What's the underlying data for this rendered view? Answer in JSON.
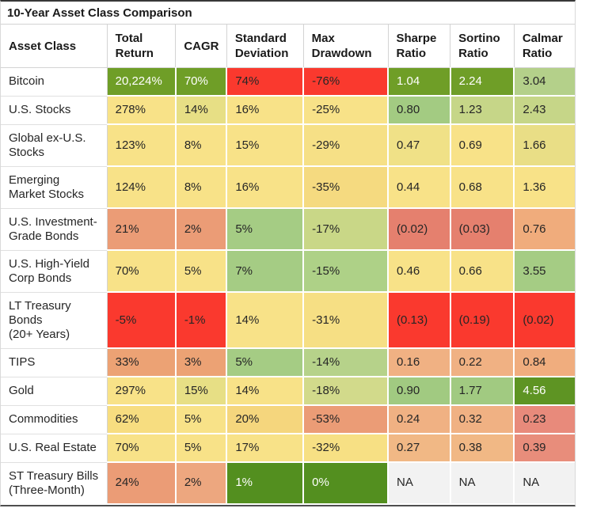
{
  "title": "10-Year Asset Class Comparison",
  "palette": {
    "strong_green": "#6f9e27",
    "green": "#a5cc84",
    "light_green": "#c6d688",
    "yellow": "#f8e288",
    "orange": "#f0b183",
    "salmon": "#eb9c76",
    "red": "#fa392e",
    "na_gray": "#f2f2f2",
    "dark_text": "#262626",
    "white_text": "#ffffff"
  },
  "chart_data": {
    "type": "table",
    "title": "10-Year Asset Class Comparison",
    "columns": [
      "Asset Class",
      "Total\nReturn",
      "CAGR",
      "Standard\nDeviation",
      "Max\nDrawdown",
      "Sharpe\nRatio",
      "Sortino\nRatio",
      "Calmar\nRatio"
    ],
    "rows": [
      {
        "asset": "Bitcoin",
        "cells": [
          {
            "text": "20,224%",
            "bg": "#6f9e27",
            "fg": "#ffffff"
          },
          {
            "text": "70%",
            "bg": "#6f9e27",
            "fg": "#ffffff"
          },
          {
            "text": "74%",
            "bg": "#fa392e",
            "fg": "#262626"
          },
          {
            "text": "-76%",
            "bg": "#fa392e",
            "fg": "#262626"
          },
          {
            "text": "1.04",
            "bg": "#6f9e27",
            "fg": "#ffffff"
          },
          {
            "text": "2.24",
            "bg": "#6f9e27",
            "fg": "#ffffff"
          },
          {
            "text": "3.04",
            "bg": "#b4d08a",
            "fg": "#262626"
          }
        ]
      },
      {
        "asset": "U.S. Stocks",
        "cells": [
          {
            "text": "278%",
            "bg": "#f8e288",
            "fg": "#262626"
          },
          {
            "text": "14%",
            "bg": "#e7df85",
            "fg": "#262626"
          },
          {
            "text": "16%",
            "bg": "#f8e288",
            "fg": "#262626"
          },
          {
            "text": "-25%",
            "bg": "#f8e288",
            "fg": "#262626"
          },
          {
            "text": "0.80",
            "bg": "#a3cb82",
            "fg": "#262626"
          },
          {
            "text": "1.23",
            "bg": "#c6d688",
            "fg": "#262626"
          },
          {
            "text": "2.43",
            "bg": "#c6d688",
            "fg": "#262626"
          }
        ]
      },
      {
        "asset": "Global ex-U.S.\nStocks",
        "cells": [
          {
            "text": "123%",
            "bg": "#f8e288",
            "fg": "#262626"
          },
          {
            "text": "8%",
            "bg": "#f8e288",
            "fg": "#262626"
          },
          {
            "text": "15%",
            "bg": "#f8e288",
            "fg": "#262626"
          },
          {
            "text": "-29%",
            "bg": "#f6e086",
            "fg": "#262626"
          },
          {
            "text": "0.47",
            "bg": "#f0e187",
            "fg": "#262626"
          },
          {
            "text": "0.69",
            "bg": "#f8e288",
            "fg": "#262626"
          },
          {
            "text": "1.66",
            "bg": "#e9de86",
            "fg": "#262626"
          }
        ]
      },
      {
        "asset": "Emerging\nMarket Stocks",
        "cells": [
          {
            "text": "124%",
            "bg": "#f8e288",
            "fg": "#262626"
          },
          {
            "text": "8%",
            "bg": "#f8e288",
            "fg": "#262626"
          },
          {
            "text": "16%",
            "bg": "#f8e288",
            "fg": "#262626"
          },
          {
            "text": "-35%",
            "bg": "#f5da80",
            "fg": "#262626"
          },
          {
            "text": "0.44",
            "bg": "#f8e288",
            "fg": "#262626"
          },
          {
            "text": "0.68",
            "bg": "#f8e288",
            "fg": "#262626"
          },
          {
            "text": "1.36",
            "bg": "#f8e288",
            "fg": "#262626"
          }
        ]
      },
      {
        "asset": "U.S. Investment-\nGrade Bonds",
        "cells": [
          {
            "text": "21%",
            "bg": "#eb9c76",
            "fg": "#262626"
          },
          {
            "text": "2%",
            "bg": "#eb9c76",
            "fg": "#262626"
          },
          {
            "text": "5%",
            "bg": "#a5cc84",
            "fg": "#262626"
          },
          {
            "text": "-17%",
            "bg": "#c9d787",
            "fg": "#262626"
          },
          {
            "text": "(0.02)",
            "bg": "#e5806e",
            "fg": "#262626"
          },
          {
            "text": "(0.03)",
            "bg": "#e5806e",
            "fg": "#262626"
          },
          {
            "text": "0.76",
            "bg": "#f0ac7c",
            "fg": "#262626"
          }
        ]
      },
      {
        "asset": "U.S. High-Yield\nCorp Bonds",
        "cells": [
          {
            "text": "70%",
            "bg": "#f8e288",
            "fg": "#262626"
          },
          {
            "text": "5%",
            "bg": "#f8e288",
            "fg": "#262626"
          },
          {
            "text": "7%",
            "bg": "#a5cc84",
            "fg": "#262626"
          },
          {
            "text": "-15%",
            "bg": "#aed187",
            "fg": "#262626"
          },
          {
            "text": "0.46",
            "bg": "#f8e288",
            "fg": "#262626"
          },
          {
            "text": "0.66",
            "bg": "#f8e288",
            "fg": "#262626"
          },
          {
            "text": "3.55",
            "bg": "#a5cc84",
            "fg": "#262626"
          }
        ]
      },
      {
        "asset": "LT Treasury\nBonds\n(20+ Years)",
        "cells": [
          {
            "text": "-5%",
            "bg": "#fa392e",
            "fg": "#262626"
          },
          {
            "text": "-1%",
            "bg": "#fa392e",
            "fg": "#262626"
          },
          {
            "text": "14%",
            "bg": "#f8e288",
            "fg": "#262626"
          },
          {
            "text": "-31%",
            "bg": "#f6df84",
            "fg": "#262626"
          },
          {
            "text": "(0.13)",
            "bg": "#fa392e",
            "fg": "#262626"
          },
          {
            "text": "(0.19)",
            "bg": "#fa392e",
            "fg": "#262626"
          },
          {
            "text": "(0.02)",
            "bg": "#fa392e",
            "fg": "#262626"
          }
        ]
      },
      {
        "asset": "TIPS",
        "cells": [
          {
            "text": "33%",
            "bg": "#eca274",
            "fg": "#262626"
          },
          {
            "text": "3%",
            "bg": "#eca274",
            "fg": "#262626"
          },
          {
            "text": "5%",
            "bg": "#a5cc84",
            "fg": "#262626"
          },
          {
            "text": "-14%",
            "bg": "#b6d28a",
            "fg": "#262626"
          },
          {
            "text": "0.16",
            "bg": "#f0b183",
            "fg": "#262626"
          },
          {
            "text": "0.22",
            "bg": "#f0b183",
            "fg": "#262626"
          },
          {
            "text": "0.84",
            "bg": "#f0ad7e",
            "fg": "#262626"
          }
        ]
      },
      {
        "asset": "Gold",
        "cells": [
          {
            "text": "297%",
            "bg": "#f8e288",
            "fg": "#262626"
          },
          {
            "text": "15%",
            "bg": "#e7df85",
            "fg": "#262626"
          },
          {
            "text": "14%",
            "bg": "#f8e288",
            "fg": "#262626"
          },
          {
            "text": "-18%",
            "bg": "#d2da8b",
            "fg": "#262626"
          },
          {
            "text": "0.90",
            "bg": "#a1ca81",
            "fg": "#262626"
          },
          {
            "text": "1.77",
            "bg": "#a1ca81",
            "fg": "#262626"
          },
          {
            "text": "4.56",
            "bg": "#5e9423",
            "fg": "#ffffff"
          }
        ]
      },
      {
        "asset": "Commodities",
        "cells": [
          {
            "text": "62%",
            "bg": "#f7dd80",
            "fg": "#262626"
          },
          {
            "text": "5%",
            "bg": "#f8e288",
            "fg": "#262626"
          },
          {
            "text": "20%",
            "bg": "#f5d67d",
            "fg": "#262626"
          },
          {
            "text": "-53%",
            "bg": "#eb9c76",
            "fg": "#262626"
          },
          {
            "text": "0.24",
            "bg": "#f0b183",
            "fg": "#262626"
          },
          {
            "text": "0.32",
            "bg": "#f0b183",
            "fg": "#262626"
          },
          {
            "text": "0.23",
            "bg": "#e88a7b",
            "fg": "#262626"
          }
        ]
      },
      {
        "asset": "U.S. Real Estate",
        "cells": [
          {
            "text": "70%",
            "bg": "#f8e288",
            "fg": "#262626"
          },
          {
            "text": "5%",
            "bg": "#f8e288",
            "fg": "#262626"
          },
          {
            "text": "17%",
            "bg": "#f8e288",
            "fg": "#262626"
          },
          {
            "text": "-32%",
            "bg": "#f7e084",
            "fg": "#262626"
          },
          {
            "text": "0.27",
            "bg": "#f1b885",
            "fg": "#262626"
          },
          {
            "text": "0.38",
            "bg": "#f1b885",
            "fg": "#262626"
          },
          {
            "text": "0.39",
            "bg": "#e88d7b",
            "fg": "#262626"
          }
        ]
      },
      {
        "asset": "ST Treasury Bills\n(Three-Month)",
        "cells": [
          {
            "text": "24%",
            "bg": "#eb9c76",
            "fg": "#262626"
          },
          {
            "text": "2%",
            "bg": "#eda77f",
            "fg": "#262626"
          },
          {
            "text": "1%",
            "bg": "#538f1f",
            "fg": "#ffffff"
          },
          {
            "text": "0%",
            "bg": "#538f1f",
            "fg": "#ffffff"
          },
          {
            "text": "NA",
            "bg": "#f2f2f2",
            "fg": "#262626"
          },
          {
            "text": "NA",
            "bg": "#f2f2f2",
            "fg": "#262626"
          },
          {
            "text": "NA",
            "bg": "#f2f2f2",
            "fg": "#262626"
          }
        ]
      }
    ]
  }
}
